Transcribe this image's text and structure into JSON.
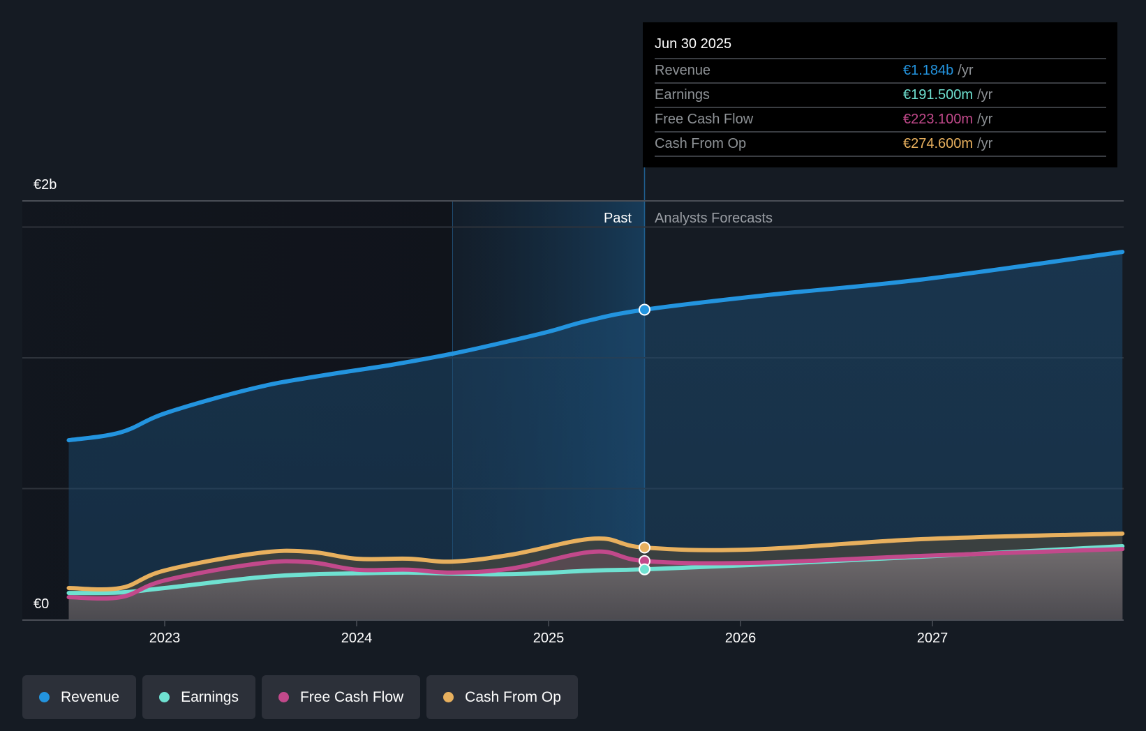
{
  "tooltip": {
    "date": "Jun 30 2025",
    "rows": [
      {
        "label": "Revenue",
        "value": "€1.184b",
        "unit": "/yr",
        "color": "#2394df"
      },
      {
        "label": "Earnings",
        "value": "€191.500m",
        "unit": "/yr",
        "color": "#6fe1d1"
      },
      {
        "label": "Free Cash Flow",
        "value": "€223.100m",
        "unit": "/yr",
        "color": "#c2498b"
      },
      {
        "label": "Cash From Op",
        "value": "€274.600m",
        "unit": "/yr",
        "color": "#e8b05e"
      }
    ]
  },
  "legend": [
    {
      "label": "Revenue",
      "color": "#2394df"
    },
    {
      "label": "Earnings",
      "color": "#6fe1d1"
    },
    {
      "label": "Free Cash Flow",
      "color": "#c2498b"
    },
    {
      "label": "Cash From Op",
      "color": "#e8b05e"
    }
  ],
  "chart_data": {
    "type": "area",
    "title": "",
    "xlabel": "",
    "ylabel": "",
    "y_unit": "EUR billions",
    "y_tick_labels": [
      {
        "label": "€0",
        "value": 0
      },
      {
        "label": "€2b",
        "value": 1.6
      }
    ],
    "ylim": [
      0,
      1.6
    ],
    "gridline_values": [
      0.5,
      1.0,
      1.5
    ],
    "xlim": [
      2022.49,
      2027.99
    ],
    "x_ticks": [
      {
        "label": "2023",
        "value": 2023
      },
      {
        "label": "2024",
        "value": 2024
      },
      {
        "label": "2025",
        "value": 2025
      },
      {
        "label": "2026",
        "value": 2026
      },
      {
        "label": "2027",
        "value": 2027
      }
    ],
    "regions": {
      "past_label": "Past",
      "forecast_label": "Analysts Forecasts",
      "highlight_start": 2024.5,
      "divider": 2025.5
    },
    "highlight_point": {
      "x": 2025.5,
      "label": "Jun 30 2025"
    },
    "series": [
      {
        "name": "Revenue",
        "color": "#2394df",
        "points": [
          [
            2022.5,
            0.685
          ],
          [
            2022.77,
            0.715
          ],
          [
            2023.01,
            0.79
          ],
          [
            2023.46,
            0.883
          ],
          [
            2023.8,
            0.93
          ],
          [
            2024.18,
            0.973
          ],
          [
            2024.5,
            1.016
          ],
          [
            2024.73,
            1.053
          ],
          [
            2025.0,
            1.1
          ],
          [
            2025.2,
            1.141
          ],
          [
            2025.5,
            1.184
          ],
          [
            2026.14,
            1.24
          ],
          [
            2026.95,
            1.3
          ],
          [
            2027.99,
            1.405
          ]
        ]
      },
      {
        "name": "Earnings",
        "color": "#6fe1d1",
        "points": [
          [
            2022.5,
            0.101
          ],
          [
            2022.77,
            0.103
          ],
          [
            2023.0,
            0.12
          ],
          [
            2023.48,
            0.16
          ],
          [
            2023.75,
            0.172
          ],
          [
            2024.0,
            0.176
          ],
          [
            2024.27,
            0.179
          ],
          [
            2024.5,
            0.175
          ],
          [
            2024.81,
            0.173
          ],
          [
            2025.24,
            0.187
          ],
          [
            2025.5,
            0.1915
          ],
          [
            2026.05,
            0.208
          ],
          [
            2026.95,
            0.24
          ],
          [
            2027.99,
            0.28
          ]
        ]
      },
      {
        "name": "Free Cash Flow",
        "color": "#c2498b",
        "points": [
          [
            2022.5,
            0.085
          ],
          [
            2022.77,
            0.085
          ],
          [
            2023.0,
            0.149
          ],
          [
            2023.48,
            0.213
          ],
          [
            2023.75,
            0.219
          ],
          [
            2024.0,
            0.19
          ],
          [
            2024.27,
            0.19
          ],
          [
            2024.5,
            0.179
          ],
          [
            2024.81,
            0.195
          ],
          [
            2025.24,
            0.259
          ],
          [
            2025.5,
            0.2231
          ],
          [
            2026.05,
            0.216
          ],
          [
            2026.95,
            0.243
          ],
          [
            2027.99,
            0.269
          ]
        ]
      },
      {
        "name": "Cash From Op",
        "color": "#e8b05e",
        "points": [
          [
            2022.5,
            0.12
          ],
          [
            2022.77,
            0.12
          ],
          [
            2023.0,
            0.187
          ],
          [
            2023.48,
            0.253
          ],
          [
            2023.75,
            0.259
          ],
          [
            2024.0,
            0.232
          ],
          [
            2024.27,
            0.232
          ],
          [
            2024.5,
            0.221
          ],
          [
            2024.81,
            0.248
          ],
          [
            2025.24,
            0.309
          ],
          [
            2025.5,
            0.2746
          ],
          [
            2026.05,
            0.267
          ],
          [
            2026.95,
            0.307
          ],
          [
            2027.99,
            0.328
          ]
        ]
      }
    ]
  }
}
